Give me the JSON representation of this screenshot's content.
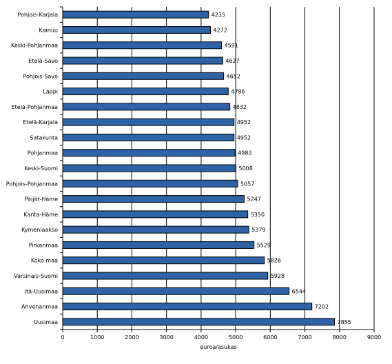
{
  "chart_data": {
    "type": "bar",
    "orientation": "horizontal",
    "categories": [
      "Pohjois-Karjala",
      "Kainuu",
      "Keski-Pohjanmaa",
      "Etelä-Savo",
      "Pohjois-Savo",
      "Lappi",
      "Etelä-Pohjanmaa",
      "Etelä-Karjala",
      "Satakunta",
      "Pohjanmaa",
      "Keski-Suomi",
      "Pohjois-Pohjanmaa",
      "Päijät-Häme",
      "Kanta-Häme",
      "Kymenlaakso",
      "Pirkanmaa",
      "Koko maa",
      "Varsinais-Suomi",
      "Itä-Uusimaa",
      "Ahvenanmaa",
      "Uusimaa"
    ],
    "values": [
      4215,
      4272,
      4591,
      4627,
      4652,
      4786,
      4832,
      4952,
      4952,
      4982,
      5008,
      5057,
      5247,
      5350,
      5379,
      5529,
      5826,
      5928,
      6544,
      7202,
      7855
    ],
    "value_labels": [
      "4215",
      "4272",
      "4591",
      "4627",
      "4652",
      "4786",
      "4832",
      "4952",
      "4952",
      "4982",
      "5008",
      "5057",
      "5247",
      "5350",
      "5379",
      "5529",
      "5826",
      "5928",
      "6544",
      "7202",
      "7855"
    ],
    "xlabel": "euroa/asukas",
    "xlim": [
      0,
      9000
    ],
    "xticks": [
      0,
      1000,
      2000,
      3000,
      4000,
      5000,
      6000,
      7000,
      8000,
      9000
    ],
    "grid": true,
    "bar_color": "#2e63a8",
    "bar_edge_color": "#000000"
  }
}
